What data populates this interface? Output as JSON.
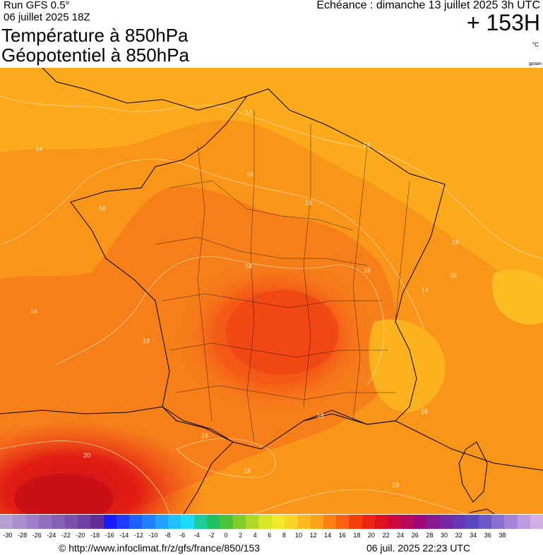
{
  "header": {
    "run": "Run GFS 0.5°",
    "run_date": "06 juillet 2025 18Z",
    "title_line1": "Température à 850hPa",
    "title_line2": "Géopotentiel à 850hPa",
    "echeance": "Echéance : dimanche 13 juillet 2025 3h UTC",
    "hour_offset": "+ 153H",
    "unit": "°C",
    "brand": "gpdam"
  },
  "map": {
    "contour_labels": [
      "14",
      "14",
      "16",
      "16",
      "14",
      "14",
      "16",
      "18",
      "18",
      "18",
      "16",
      "18",
      "16",
      "16",
      "18",
      "20",
      "18",
      "18",
      "16"
    ]
  },
  "legend": {
    "ticks": [
      "-30",
      "-28",
      "-26",
      "-24",
      "-22",
      "-20",
      "-18",
      "-16",
      "-14",
      "-12",
      "-10",
      "-8",
      "-6",
      "-4",
      "-2",
      "0",
      "2",
      "4",
      "6",
      "8",
      "10",
      "12",
      "14",
      "16",
      "18",
      "20",
      "22",
      "24",
      "26",
      "28",
      "30",
      "32",
      "34",
      "36",
      "38"
    ],
    "colors": [
      "#b4a0d2",
      "#aa8fcd",
      "#9f7fc6",
      "#9370be",
      "#8660b5",
      "#7a50ab",
      "#6e40a2",
      "#622f98",
      "#1a1aff",
      "#1e3cff",
      "#1f5eff",
      "#2080ff",
      "#21a0ff",
      "#20c0ff",
      "#1fdcf5",
      "#1ecc9a",
      "#20c060",
      "#4cc43a",
      "#80cc2a",
      "#b0d828",
      "#d8e428",
      "#f2ea2a",
      "#fcd428",
      "#fcba20",
      "#fca218",
      "#fc8214",
      "#fa6210",
      "#f5400e",
      "#ee2412",
      "#e0101e",
      "#cc0a3c",
      "#b8085a",
      "#a00878",
      "#881a92",
      "#7428a6",
      "#6438b4",
      "#5a48c0",
      "#6a5ac8",
      "#8a6ed0",
      "#a684d8",
      "#bf9adf",
      "#d2b0e5"
    ]
  },
  "footer": {
    "source": "© http://www.infoclimat.fr/z/gfs/france/850/153",
    "generated": "06 juil. 2025 22:23 UTC"
  }
}
